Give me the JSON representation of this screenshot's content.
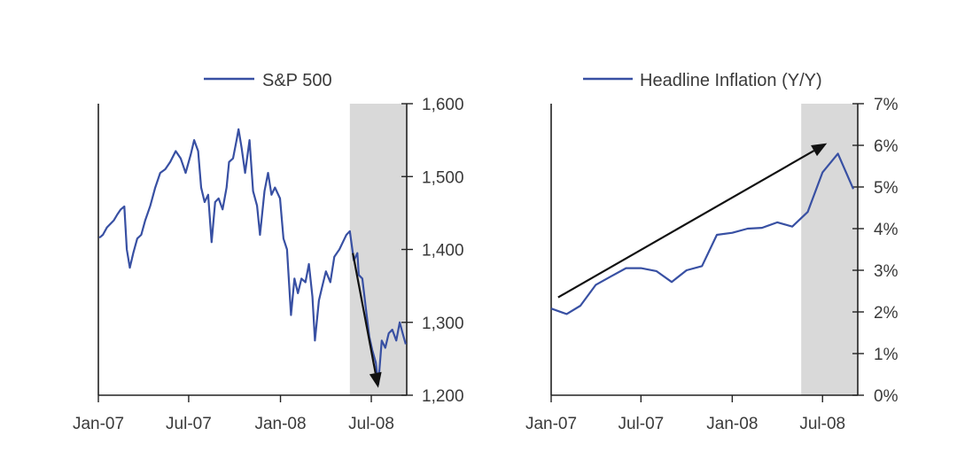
{
  "colors": {
    "series": "#3850a3",
    "shade": "#d9d9d9",
    "axis": "#222222",
    "text": "#3a3a3a",
    "arrow": "#111111"
  },
  "chart_data": [
    {
      "type": "line",
      "legend": "S&P 500",
      "legend_placement": "top",
      "grid": false,
      "x_tick_labels": [
        "Jan-07",
        "Jul-07",
        "Jan-08",
        "Jul-08"
      ],
      "x_ticks": [
        "2007-01-01",
        "2007-07-01",
        "2008-01-01",
        "2008-07-01"
      ],
      "xlim": [
        "2007-01-01",
        "2008-09-10"
      ],
      "ylim": [
        1200,
        1600
      ],
      "y_ticks": [
        1200,
        1300,
        1400,
        1500,
        1600
      ],
      "y_tick_labels": [
        "1,200",
        "1,300",
        "1,400",
        "1,500",
        "1,600"
      ],
      "y_axis_side": "right",
      "shaded_region": [
        "2008-05-19",
        "2008-09-10"
      ],
      "annotation_arrow": {
        "from": [
          "2008-05-25",
          1395
        ],
        "to": [
          "2008-07-15",
          1210
        ]
      },
      "series": [
        {
          "name": "S&P 500",
          "points": [
            [
              "2007-01-03",
              1416
            ],
            [
              "2007-01-10",
              1420
            ],
            [
              "2007-01-18",
              1430
            ],
            [
              "2007-01-25",
              1435
            ],
            [
              "2007-02-01",
              1440
            ],
            [
              "2007-02-08",
              1448
            ],
            [
              "2007-02-15",
              1455
            ],
            [
              "2007-02-22",
              1459
            ],
            [
              "2007-02-27",
              1400
            ],
            [
              "2007-03-05",
              1375
            ],
            [
              "2007-03-12",
              1395
            ],
            [
              "2007-03-20",
              1415
            ],
            [
              "2007-03-28",
              1420
            ],
            [
              "2007-04-05",
              1440
            ],
            [
              "2007-04-15",
              1460
            ],
            [
              "2007-04-25",
              1485
            ],
            [
              "2007-05-05",
              1505
            ],
            [
              "2007-05-15",
              1510
            ],
            [
              "2007-05-25",
              1520
            ],
            [
              "2007-06-05",
              1535
            ],
            [
              "2007-06-15",
              1525
            ],
            [
              "2007-06-25",
              1505
            ],
            [
              "2007-07-05",
              1530
            ],
            [
              "2007-07-12",
              1550
            ],
            [
              "2007-07-20",
              1535
            ],
            [
              "2007-07-26",
              1485
            ],
            [
              "2007-08-02",
              1465
            ],
            [
              "2007-08-09",
              1475
            ],
            [
              "2007-08-16",
              1410
            ],
            [
              "2007-08-23",
              1465
            ],
            [
              "2007-08-30",
              1470
            ],
            [
              "2007-09-07",
              1455
            ],
            [
              "2007-09-15",
              1485
            ],
            [
              "2007-09-20",
              1520
            ],
            [
              "2007-09-28",
              1525
            ],
            [
              "2007-10-05",
              1550
            ],
            [
              "2007-10-09",
              1565
            ],
            [
              "2007-10-15",
              1540
            ],
            [
              "2007-10-22",
              1505
            ],
            [
              "2007-10-31",
              1550
            ],
            [
              "2007-11-07",
              1480
            ],
            [
              "2007-11-15",
              1460
            ],
            [
              "2007-11-21",
              1420
            ],
            [
              "2007-11-30",
              1480
            ],
            [
              "2007-12-07",
              1505
            ],
            [
              "2007-12-14",
              1475
            ],
            [
              "2007-12-21",
              1485
            ],
            [
              "2007-12-31",
              1470
            ],
            [
              "2008-01-07",
              1415
            ],
            [
              "2008-01-14",
              1400
            ],
            [
              "2008-01-22",
              1310
            ],
            [
              "2008-01-29",
              1360
            ],
            [
              "2008-02-05",
              1340
            ],
            [
              "2008-02-12",
              1360
            ],
            [
              "2008-02-20",
              1355
            ],
            [
              "2008-02-27",
              1380
            ],
            [
              "2008-03-05",
              1335
            ],
            [
              "2008-03-10",
              1275
            ],
            [
              "2008-03-18",
              1330
            ],
            [
              "2008-03-25",
              1350
            ],
            [
              "2008-04-01",
              1370
            ],
            [
              "2008-04-10",
              1355
            ],
            [
              "2008-04-18",
              1390
            ],
            [
              "2008-04-28",
              1400
            ],
            [
              "2008-05-05",
              1410
            ],
            [
              "2008-05-12",
              1420
            ],
            [
              "2008-05-19",
              1425
            ],
            [
              "2008-05-27",
              1385
            ],
            [
              "2008-06-03",
              1395
            ],
            [
              "2008-06-06",
              1365
            ],
            [
              "2008-06-13",
              1360
            ],
            [
              "2008-06-20",
              1320
            ],
            [
              "2008-06-27",
              1280
            ],
            [
              "2008-07-03",
              1262
            ],
            [
              "2008-07-10",
              1245
            ],
            [
              "2008-07-15",
              1215
            ],
            [
              "2008-07-22",
              1275
            ],
            [
              "2008-07-29",
              1265
            ],
            [
              "2008-08-05",
              1285
            ],
            [
              "2008-08-12",
              1290
            ],
            [
              "2008-08-20",
              1275
            ],
            [
              "2008-08-27",
              1300
            ],
            [
              "2008-09-03",
              1282
            ],
            [
              "2008-09-08",
              1270
            ]
          ]
        }
      ]
    },
    {
      "type": "line",
      "legend": "Headline Inflation (Y/Y)",
      "legend_placement": "top",
      "grid": false,
      "x_tick_labels": [
        "Jan-07",
        "Jul-07",
        "Jan-08",
        "Jul-08"
      ],
      "x_ticks": [
        "2007-01-01",
        "2007-07-01",
        "2008-01-01",
        "2008-07-01"
      ],
      "xlim": [
        "2007-01-01",
        "2008-09-10"
      ],
      "ylim": [
        0,
        7
      ],
      "y_ticks": [
        0,
        1,
        2,
        3,
        4,
        5,
        6,
        7
      ],
      "y_tick_labels": [
        "0%",
        "1%",
        "2%",
        "3%",
        "4%",
        "5%",
        "6%",
        "7%"
      ],
      "y_axis_side": "right",
      "shaded_region": [
        "2008-05-19",
        "2008-09-10"
      ],
      "annotation_arrow": {
        "from": [
          "2007-01-15",
          2.35
        ],
        "to": [
          "2008-07-10",
          6.05
        ]
      },
      "series": [
        {
          "name": "Headline Inflation (Y/Y)",
          "points": [
            [
              "2007-01-01",
              2.08
            ],
            [
              "2007-02-01",
              1.95
            ],
            [
              "2007-03-01",
              2.15
            ],
            [
              "2007-04-01",
              2.65
            ],
            [
              "2007-05-01",
              2.85
            ],
            [
              "2007-06-01",
              3.05
            ],
            [
              "2007-07-01",
              3.05
            ],
            [
              "2007-08-01",
              2.98
            ],
            [
              "2007-09-01",
              2.72
            ],
            [
              "2007-10-01",
              3.0
            ],
            [
              "2007-11-01",
              3.1
            ],
            [
              "2007-12-01",
              3.85
            ],
            [
              "2008-01-01",
              3.9
            ],
            [
              "2008-02-01",
              4.0
            ],
            [
              "2008-03-01",
              4.02
            ],
            [
              "2008-04-01",
              4.15
            ],
            [
              "2008-05-01",
              4.05
            ],
            [
              "2008-06-01",
              4.4
            ],
            [
              "2008-07-01",
              5.35
            ],
            [
              "2008-08-01",
              5.8
            ],
            [
              "2008-09-01",
              4.95
            ]
          ]
        }
      ]
    }
  ]
}
